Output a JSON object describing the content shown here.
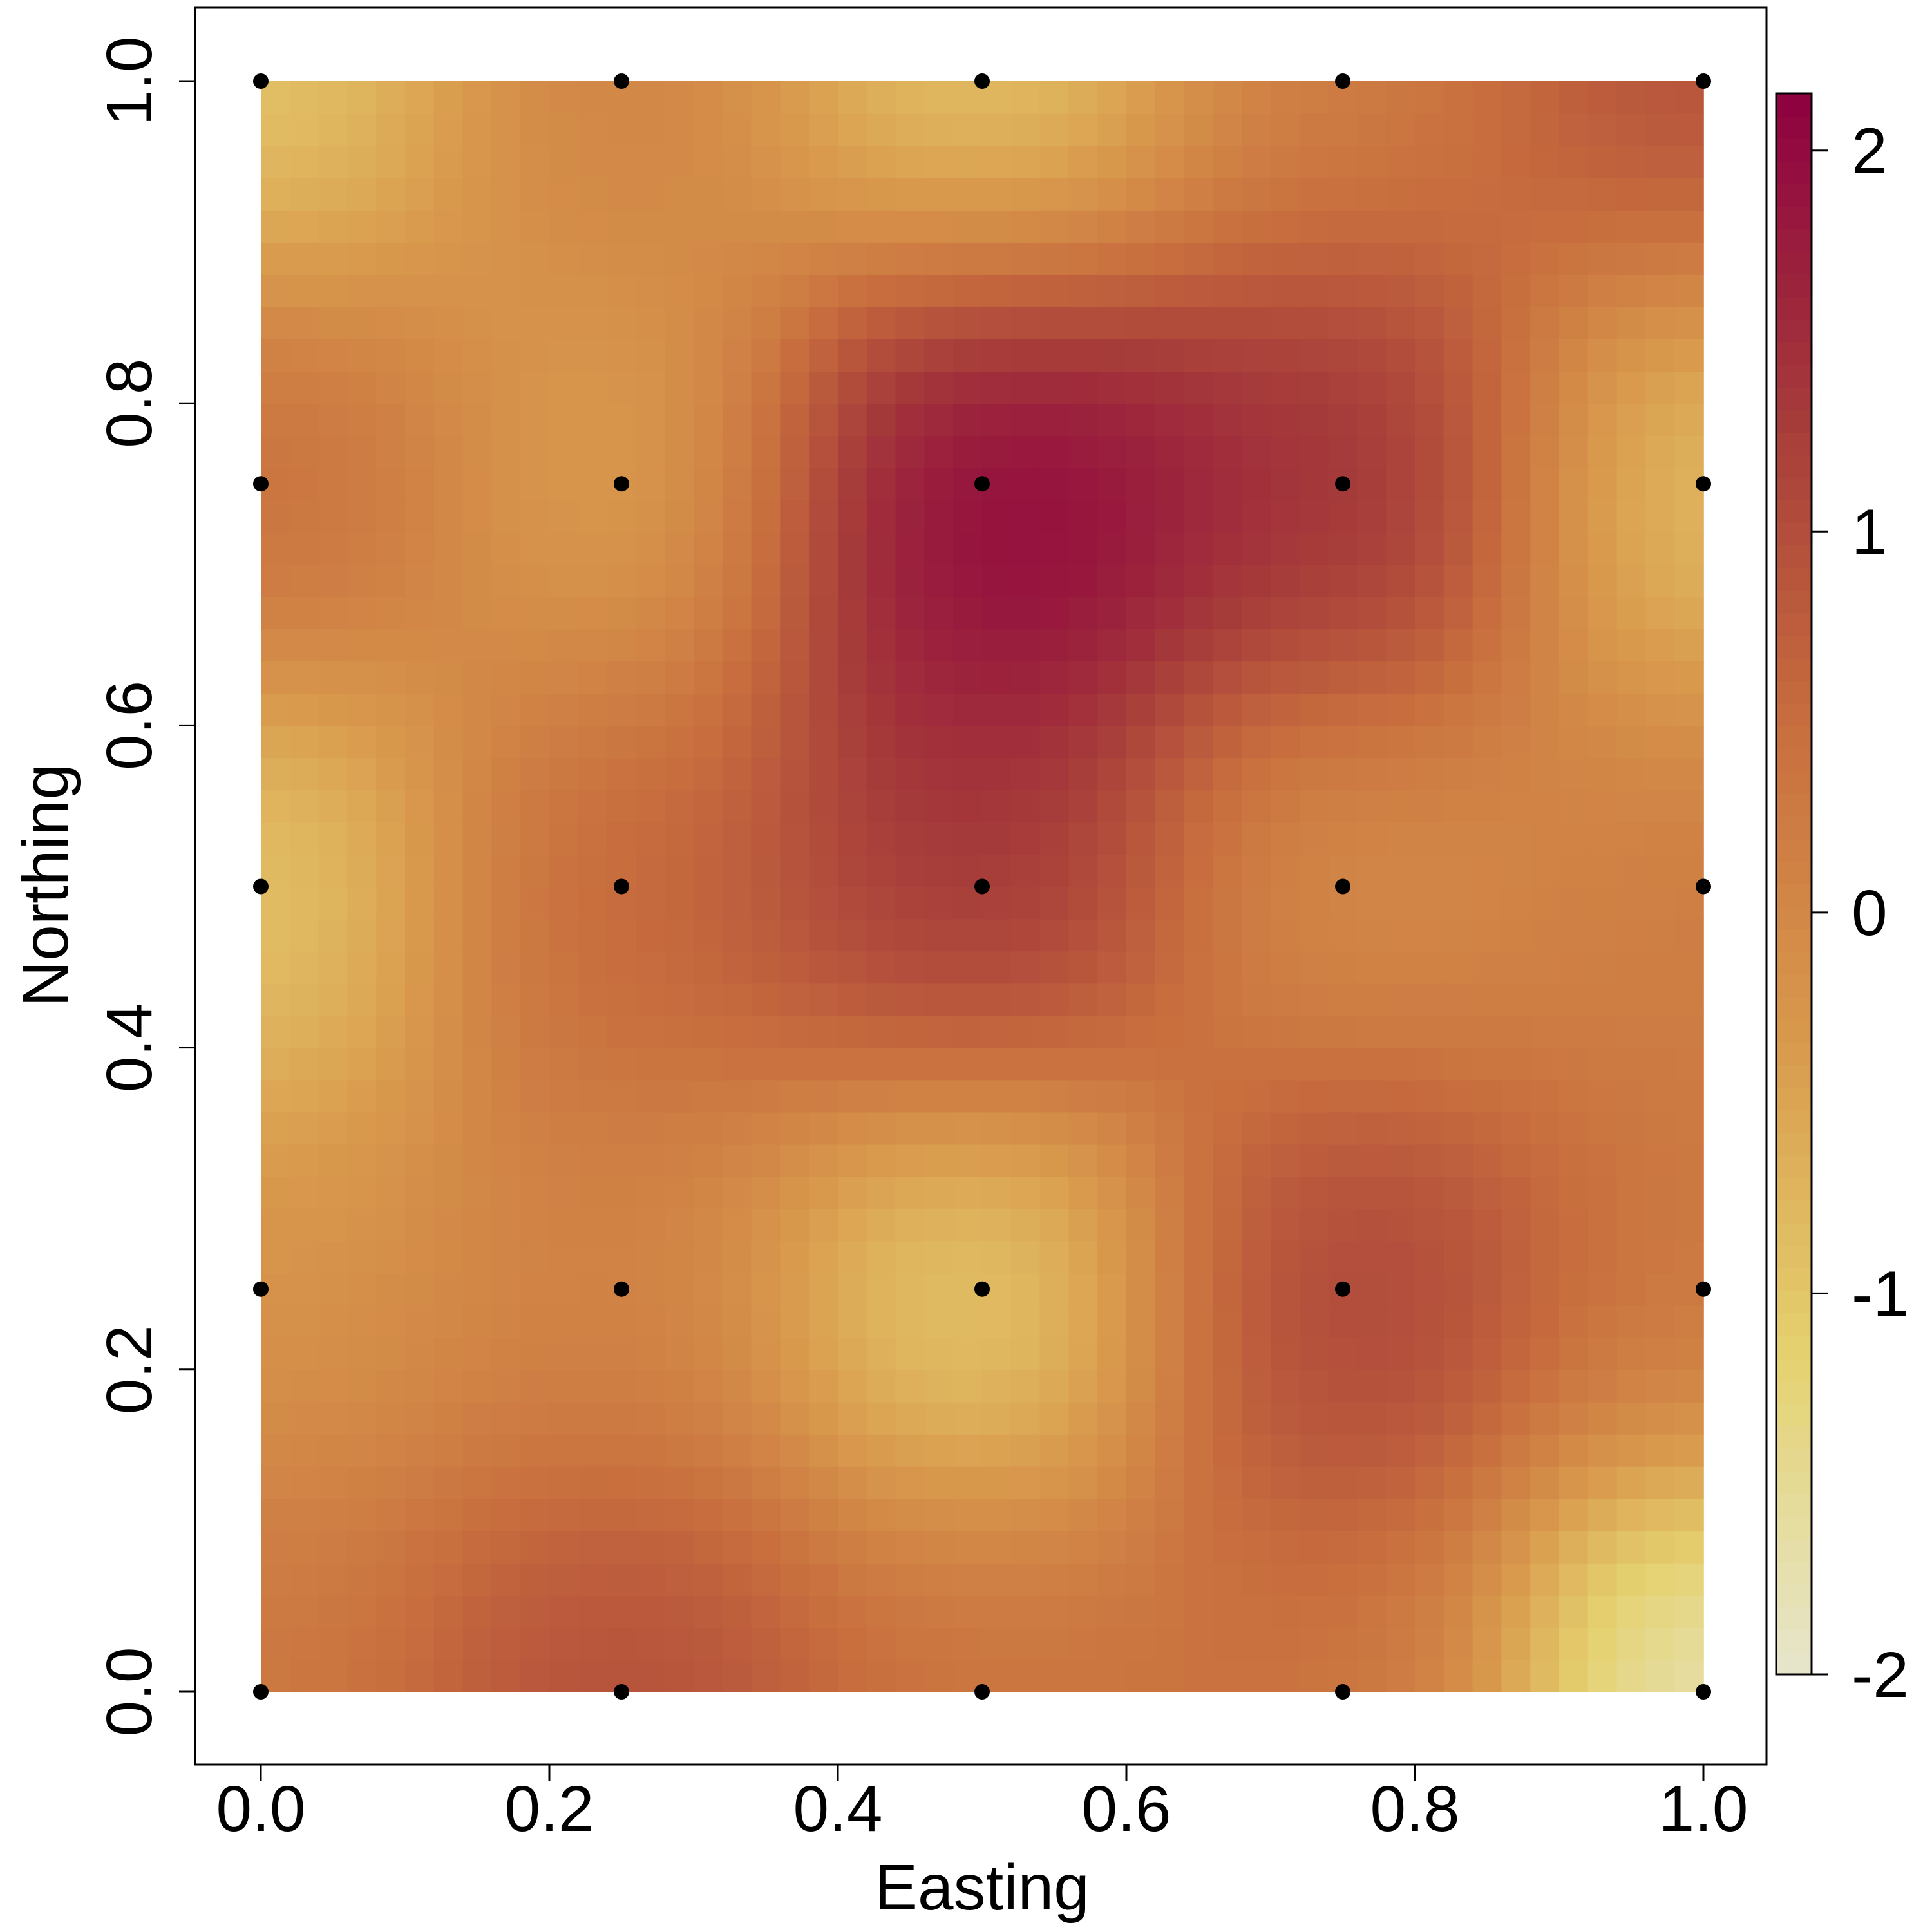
{
  "chart_data": {
    "type": "heatmap",
    "title": "",
    "xlabel": "Easting",
    "ylabel": "Northing",
    "xlim": [
      -0.045,
      1.045
    ],
    "ylim": [
      -0.045,
      1.045
    ],
    "x_ticks": [
      0.0,
      0.2,
      0.4,
      0.6,
      0.8,
      1.0
    ],
    "y_ticks": [
      0.0,
      0.2,
      0.4,
      0.6,
      0.8,
      1.0
    ],
    "x_tick_labels": [
      "0.0",
      "0.2",
      "0.4",
      "0.6",
      "0.8",
      "1.0"
    ],
    "y_tick_labels": [
      "0.0",
      "0.2",
      "0.4",
      "0.6",
      "0.8",
      "1.0"
    ],
    "grid": false,
    "colorbar": {
      "position": "right",
      "range": [
        -2.0,
        2.15
      ],
      "ticks": [
        -2,
        -1,
        0,
        1,
        2
      ],
      "tick_labels": [
        "-2",
        "-1",
        "0",
        "1",
        "2"
      ],
      "colors": [
        "#e6e6cc",
        "#e5d270",
        "#d99a4d",
        "#c86e3e",
        "#a53a3a",
        "#8e0040"
      ]
    },
    "sample_points": {
      "x": [
        0,
        0.25,
        0.5,
        0.75,
        1
      ],
      "y": [
        0,
        0.25,
        0.5,
        0.75,
        1
      ],
      "values": [
        [
          0.3,
          1.0,
          0.4,
          0.4,
          -1.8
        ],
        [
          -0.2,
          0.1,
          -1.1,
          1.2,
          0.3
        ],
        [
          -1.0,
          0.6,
          1.4,
          -0.1,
          0.2
        ],
        [
          0.5,
          -0.4,
          2.1,
          1.5,
          -0.9
        ],
        [
          -1.0,
          0.1,
          -1.0,
          0.2,
          1.0
        ]
      ]
    }
  }
}
